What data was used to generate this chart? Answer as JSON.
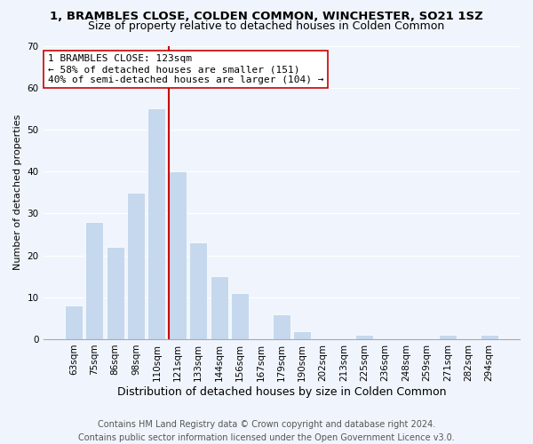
{
  "title": "1, BRAMBLES CLOSE, COLDEN COMMON, WINCHESTER, SO21 1SZ",
  "subtitle": "Size of property relative to detached houses in Colden Common",
  "xlabel": "Distribution of detached houses by size in Colden Common",
  "ylabel": "Number of detached properties",
  "bar_labels": [
    "63sqm",
    "75sqm",
    "86sqm",
    "98sqm",
    "110sqm",
    "121sqm",
    "133sqm",
    "144sqm",
    "156sqm",
    "167sqm",
    "179sqm",
    "190sqm",
    "202sqm",
    "213sqm",
    "225sqm",
    "236sqm",
    "248sqm",
    "259sqm",
    "271sqm",
    "282sqm",
    "294sqm"
  ],
  "bar_heights": [
    8,
    28,
    22,
    35,
    55,
    40,
    23,
    15,
    11,
    0,
    6,
    2,
    0,
    0,
    1,
    0,
    0,
    0,
    1,
    0,
    1
  ],
  "bar_color": "#c5d8ed",
  "bar_edge_color": "#ffffff",
  "vline_color": "#cc0000",
  "annotation_line1": "1 BRAMBLES CLOSE: 123sqm",
  "annotation_line2": "← 58% of detached houses are smaller (151)",
  "annotation_line3": "40% of semi-detached houses are larger (104) →",
  "annotation_box_color": "#ffffff",
  "annotation_box_edge": "#cc0000",
  "ylim": [
    0,
    70
  ],
  "yticks": [
    0,
    10,
    20,
    30,
    40,
    50,
    60,
    70
  ],
  "footer_line1": "Contains HM Land Registry data © Crown copyright and database right 2024.",
  "footer_line2": "Contains public sector information licensed under the Open Government Licence v3.0.",
  "title_fontsize": 9.5,
  "subtitle_fontsize": 9,
  "xlabel_fontsize": 9,
  "ylabel_fontsize": 8,
  "tick_fontsize": 7.5,
  "annotation_fontsize": 8,
  "footer_fontsize": 7,
  "background_color": "#f0f5fd"
}
